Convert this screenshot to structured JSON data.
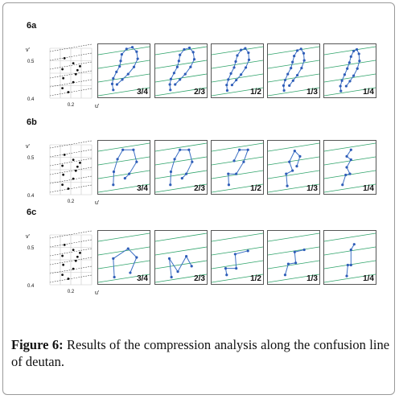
{
  "figure": {
    "caption_label": "Figure 6:",
    "caption_text": "Results of the compression analysis along the confusion line of deutan.",
    "rows": [
      {
        "label": "6a",
        "axes": {
          "ylabel": "v'",
          "xlabel": "u'",
          "yticks": [
            "0.5",
            "0.4"
          ],
          "xticks": [
            "0.2"
          ]
        },
        "panels": [
          {
            "label": "3/4",
            "path": [
              [
                0.3,
                0.85
              ],
              [
                0.28,
                0.74
              ],
              [
                0.3,
                0.64
              ],
              [
                0.36,
                0.52
              ],
              [
                0.42,
                0.42
              ],
              [
                0.44,
                0.32
              ],
              [
                0.46,
                0.2
              ],
              [
                0.55,
                0.1
              ],
              [
                0.66,
                0.07
              ],
              [
                0.74,
                0.15
              ],
              [
                0.76,
                0.28
              ],
              [
                0.69,
                0.43
              ],
              [
                0.58,
                0.56
              ],
              [
                0.47,
                0.66
              ],
              [
                0.37,
                0.75
              ]
            ]
          },
          {
            "label": "2/3",
            "path": [
              [
                0.3,
                0.85
              ],
              [
                0.29,
                0.75
              ],
              [
                0.31,
                0.65
              ],
              [
                0.37,
                0.54
              ],
              [
                0.43,
                0.43
              ],
              [
                0.46,
                0.32
              ],
              [
                0.48,
                0.21
              ],
              [
                0.56,
                0.11
              ],
              [
                0.66,
                0.08
              ],
              [
                0.73,
                0.16
              ],
              [
                0.75,
                0.29
              ],
              [
                0.68,
                0.43
              ],
              [
                0.58,
                0.56
              ],
              [
                0.48,
                0.66
              ],
              [
                0.39,
                0.75
              ]
            ]
          },
          {
            "label": "1/2",
            "path": [
              [
                0.31,
                0.86
              ],
              [
                0.3,
                0.76
              ],
              [
                0.33,
                0.66
              ],
              [
                0.38,
                0.55
              ],
              [
                0.44,
                0.44
              ],
              [
                0.47,
                0.33
              ],
              [
                0.5,
                0.22
              ],
              [
                0.57,
                0.12
              ],
              [
                0.65,
                0.09
              ],
              [
                0.71,
                0.17
              ],
              [
                0.72,
                0.3
              ],
              [
                0.66,
                0.44
              ],
              [
                0.57,
                0.57
              ],
              [
                0.48,
                0.67
              ],
              [
                0.4,
                0.76
              ]
            ]
          },
          {
            "label": "1/3",
            "path": [
              [
                0.32,
                0.86
              ],
              [
                0.31,
                0.77
              ],
              [
                0.34,
                0.67
              ],
              [
                0.39,
                0.56
              ],
              [
                0.45,
                0.45
              ],
              [
                0.48,
                0.34
              ],
              [
                0.51,
                0.23
              ],
              [
                0.57,
                0.13
              ],
              [
                0.64,
                0.1
              ],
              [
                0.69,
                0.18
              ],
              [
                0.7,
                0.31
              ],
              [
                0.65,
                0.45
              ],
              [
                0.57,
                0.58
              ],
              [
                0.49,
                0.68
              ],
              [
                0.42,
                0.77
              ]
            ]
          },
          {
            "label": "1/4",
            "path": [
              [
                0.33,
                0.87
              ],
              [
                0.32,
                0.78
              ],
              [
                0.35,
                0.68
              ],
              [
                0.4,
                0.57
              ],
              [
                0.45,
                0.46
              ],
              [
                0.49,
                0.35
              ],
              [
                0.52,
                0.24
              ],
              [
                0.57,
                0.14
              ],
              [
                0.63,
                0.11
              ],
              [
                0.67,
                0.19
              ],
              [
                0.68,
                0.32
              ],
              [
                0.64,
                0.46
              ],
              [
                0.57,
                0.59
              ],
              [
                0.5,
                0.69
              ],
              [
                0.43,
                0.78
              ]
            ]
          }
        ]
      },
      {
        "label": "6b",
        "axes": {
          "ylabel": "v'",
          "xlabel": "u'",
          "yticks": [
            "0.5",
            "0.4"
          ],
          "xticks": [
            "0.2"
          ]
        },
        "panels": [
          {
            "label": "3/4",
            "path": [
              [
                0.3,
                0.82
              ],
              [
                0.31,
                0.58
              ],
              [
                0.38,
                0.35
              ],
              [
                0.48,
                0.18
              ],
              [
                0.68,
                0.18
              ],
              [
                0.74,
                0.4
              ],
              [
                0.6,
                0.62
              ],
              [
                0.52,
                0.7
              ]
            ]
          },
          {
            "label": "2/3",
            "path": [
              [
                0.3,
                0.82
              ],
              [
                0.31,
                0.58
              ],
              [
                0.38,
                0.35
              ],
              [
                0.48,
                0.18
              ],
              [
                0.65,
                0.18
              ],
              [
                0.71,
                0.4
              ],
              [
                0.6,
                0.62
              ],
              [
                0.52,
                0.7
              ]
            ]
          },
          {
            "label": "1/2",
            "path": [
              [
                0.34,
                0.82
              ],
              [
                0.33,
                0.62
              ],
              [
                0.48,
                0.62
              ],
              [
                0.62,
                0.4
              ],
              [
                0.7,
                0.18
              ],
              [
                0.54,
                0.18
              ],
              [
                0.44,
                0.38
              ]
            ]
          },
          {
            "label": "1/3",
            "path": [
              [
                0.38,
                0.84
              ],
              [
                0.36,
                0.62
              ],
              [
                0.48,
                0.56
              ],
              [
                0.42,
                0.4
              ],
              [
                0.52,
                0.2
              ],
              [
                0.62,
                0.3
              ],
              [
                0.56,
                0.48
              ]
            ]
          },
          {
            "label": "1/4",
            "path": [
              [
                0.36,
                0.82
              ],
              [
                0.42,
                0.64
              ],
              [
                0.5,
                0.62
              ],
              [
                0.44,
                0.5
              ],
              [
                0.52,
                0.36
              ],
              [
                0.44,
                0.3
              ],
              [
                0.52,
                0.18
              ]
            ]
          }
        ]
      },
      {
        "label": "6c",
        "axes": {
          "ylabel": "v'",
          "xlabel": "u'",
          "yticks": [
            "0.5",
            "0.4"
          ],
          "xticks": [
            "0.2"
          ]
        },
        "panels": [
          {
            "label": "3/4",
            "path": [
              [
                0.32,
                0.86
              ],
              [
                0.3,
                0.52
              ],
              [
                0.58,
                0.34
              ],
              [
                0.74,
                0.5
              ],
              [
                0.62,
                0.78
              ]
            ]
          },
          {
            "label": "2/3",
            "path": [
              [
                0.32,
                0.86
              ],
              [
                0.28,
                0.52
              ],
              [
                0.44,
                0.76
              ],
              [
                0.6,
                0.48
              ],
              [
                0.7,
                0.66
              ]
            ]
          },
          {
            "label": "1/2",
            "path": [
              [
                0.3,
                0.82
              ],
              [
                0.28,
                0.7
              ],
              [
                0.48,
                0.7
              ],
              [
                0.46,
                0.44
              ],
              [
                0.7,
                0.38
              ]
            ]
          },
          {
            "label": "1/3",
            "path": [
              [
                0.34,
                0.82
              ],
              [
                0.4,
                0.62
              ],
              [
                0.54,
                0.6
              ],
              [
                0.52,
                0.4
              ],
              [
                0.7,
                0.36
              ]
            ]
          },
          {
            "label": "1/4",
            "path": [
              [
                0.44,
                0.84
              ],
              [
                0.46,
                0.64
              ],
              [
                0.52,
                0.64
              ],
              [
                0.52,
                0.36
              ],
              [
                0.58,
                0.26
              ]
            ]
          }
        ]
      }
    ]
  }
}
